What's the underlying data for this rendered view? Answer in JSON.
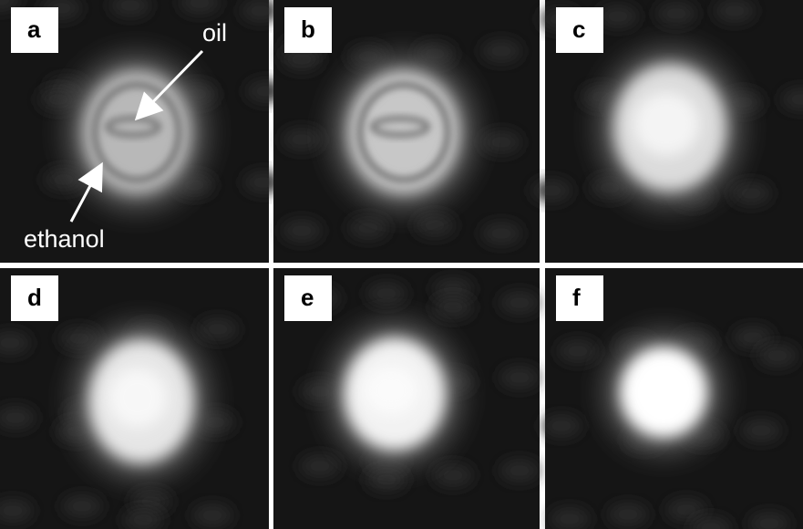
{
  "panels": [
    {
      "label": "a"
    },
    {
      "label": "b"
    },
    {
      "label": "c"
    },
    {
      "label": "d"
    },
    {
      "label": "e"
    },
    {
      "label": "f"
    }
  ],
  "annotations": {
    "oil": "oil",
    "ethanol": "ethanol"
  }
}
